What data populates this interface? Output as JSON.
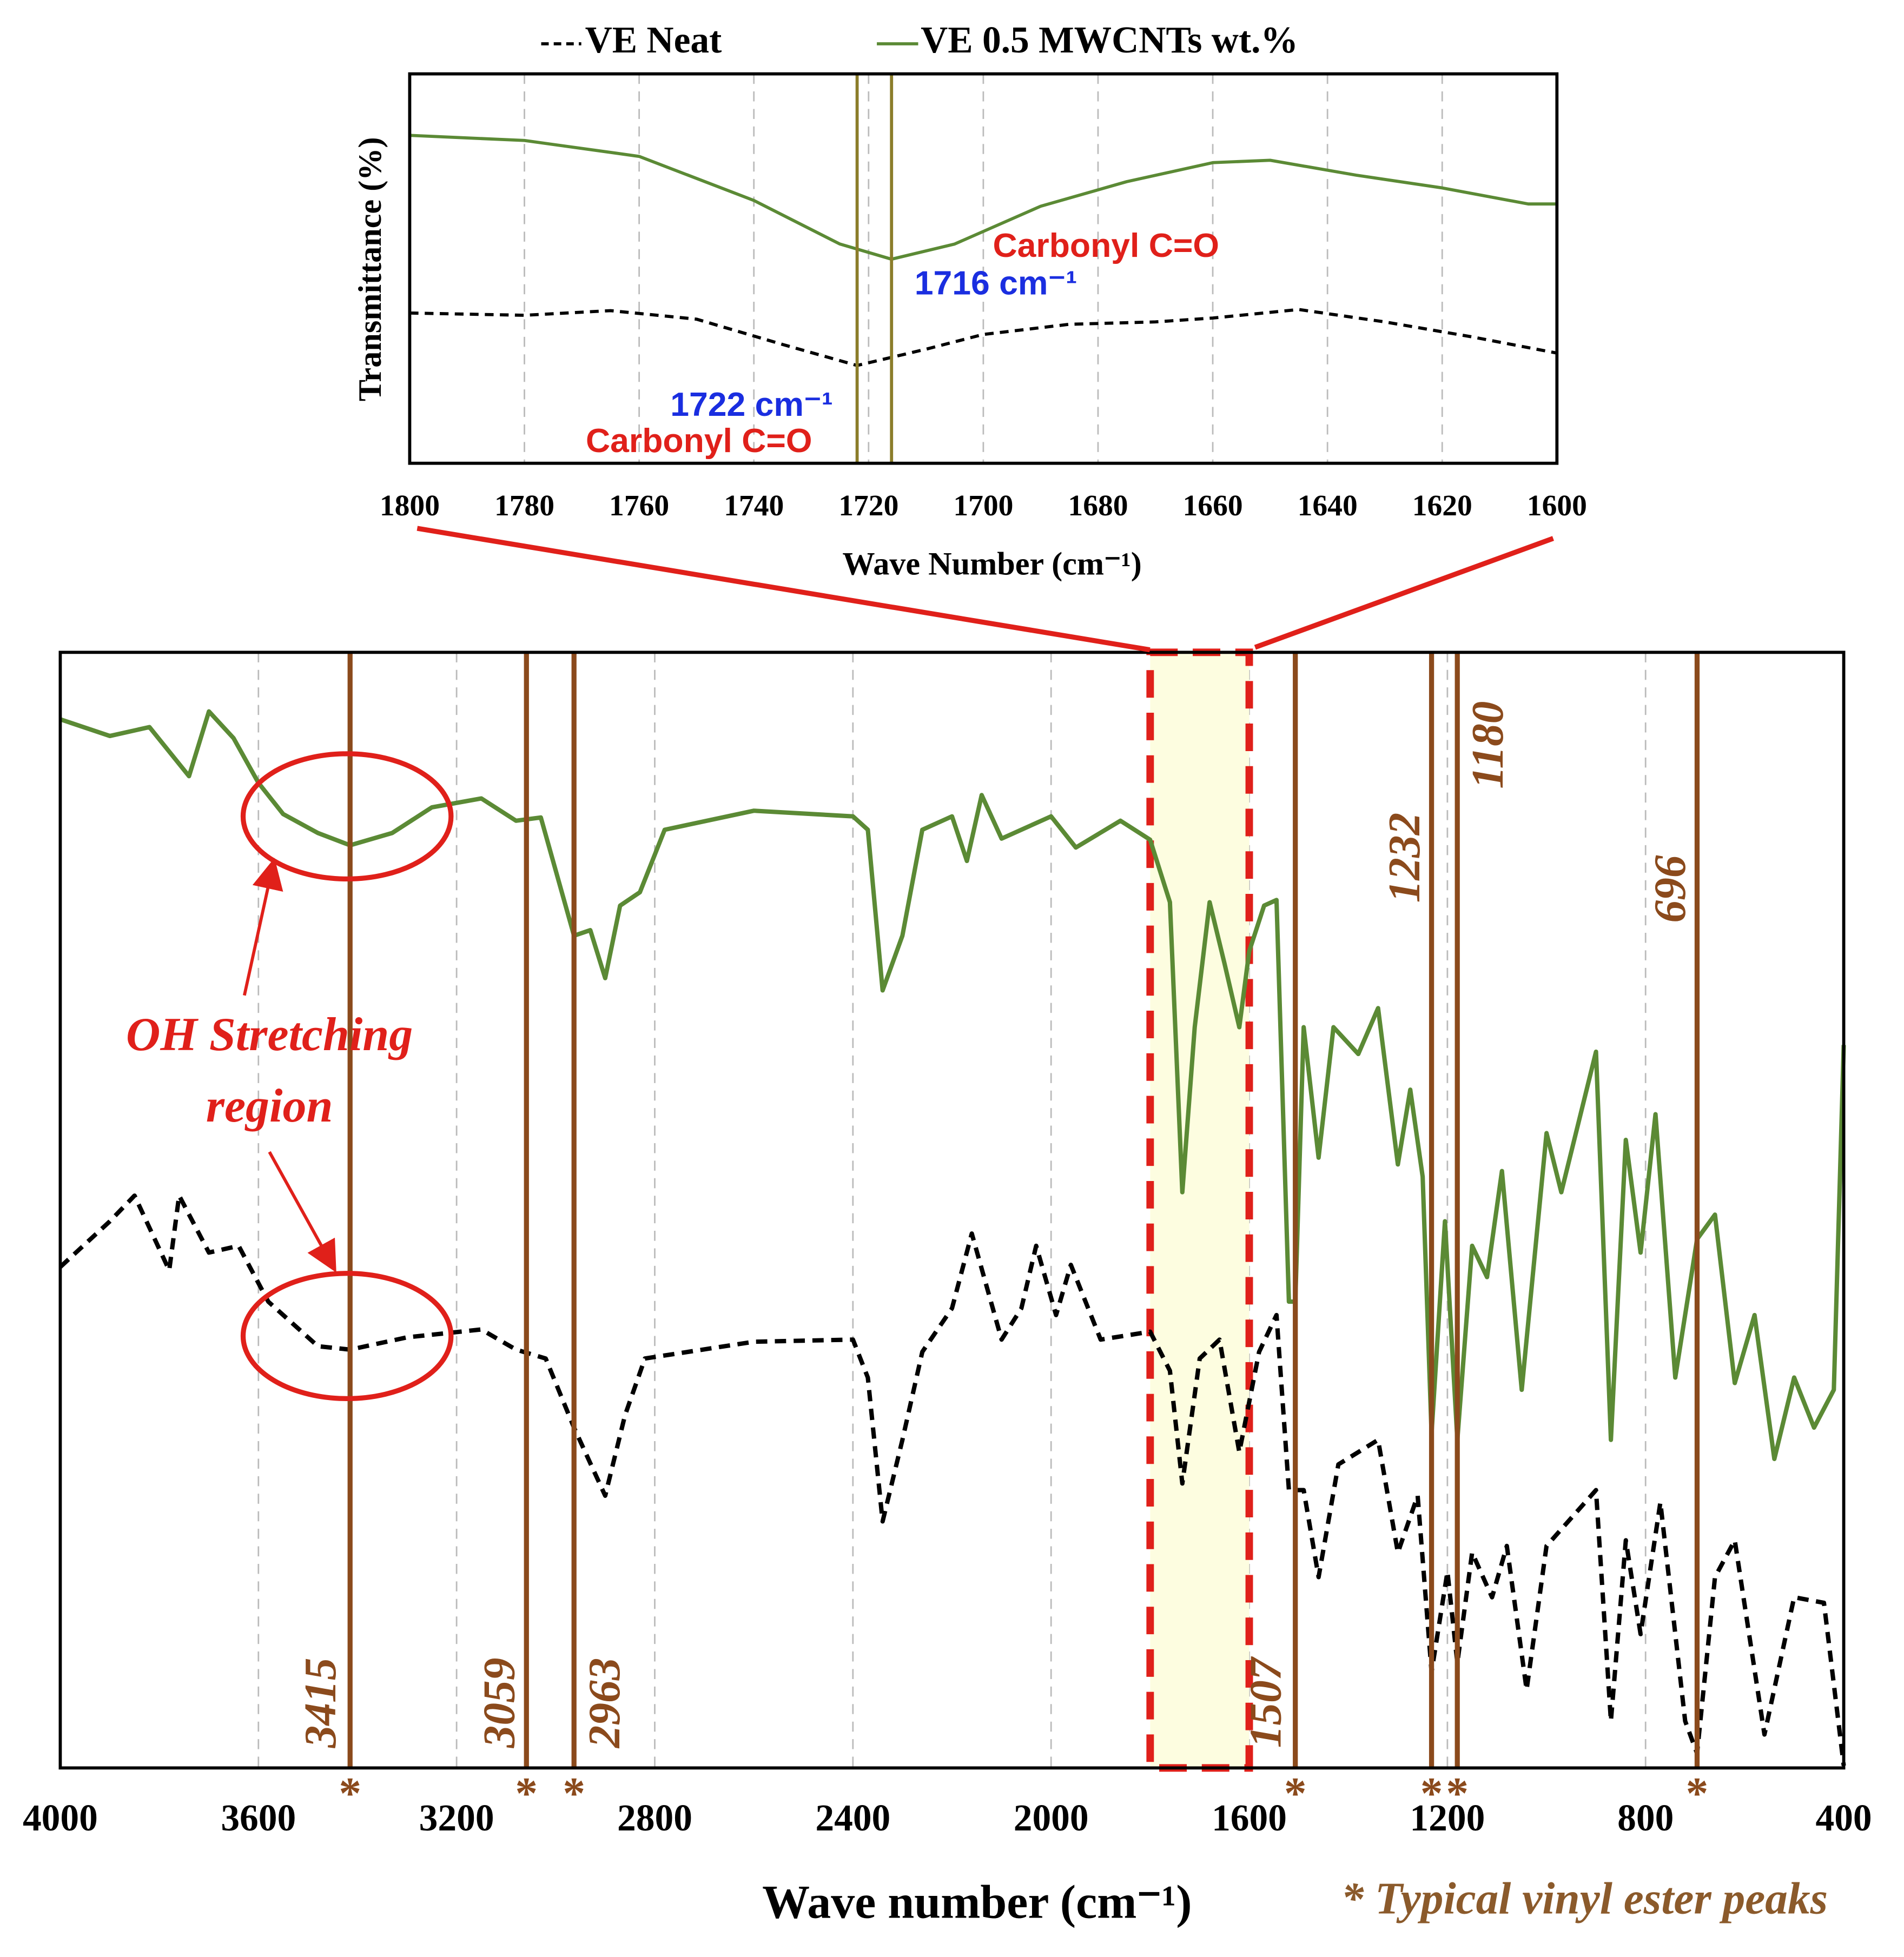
{
  "chart_data": [
    {
      "type": "line",
      "xlabel": "Wave Number (cm⁻¹)",
      "ylabel": "Transmittance (%)",
      "xlim": [
        1800,
        1600
      ],
      "ylim": [
        0,
        100
      ],
      "xticks": [
        1800,
        1780,
        1760,
        1740,
        1720,
        1700,
        1680,
        1660,
        1640,
        1620,
        1600
      ],
      "grid": true,
      "series": [
        {
          "name": "VE Neat",
          "color": "#000000",
          "dashed": true,
          "x": [
            1800,
            1780,
            1765,
            1750,
            1735,
            1722,
            1710,
            1700,
            1685,
            1670,
            1660,
            1645,
            1630,
            1615,
            1600
          ],
          "values": [
            38.6,
            38,
            39.2,
            37,
            30.5,
            25.1,
            29.3,
            33.1,
            35.7,
            36.3,
            37.3,
            39.5,
            36.3,
            32.5,
            28.3
          ]
        },
        {
          "name": "VE 0.5 MWCNTs wt.%",
          "color": "#5b8a35",
          "dashed": false,
          "x": [
            1800,
            1780,
            1760,
            1740,
            1725,
            1716,
            1705,
            1690,
            1675,
            1660,
            1650,
            1635,
            1620,
            1605,
            1600
          ],
          "values": [
            84.2,
            82.9,
            78.8,
            67.5,
            56.3,
            52.4,
            56.3,
            66,
            72.3,
            77.2,
            77.8,
            74,
            70.7,
            66.6,
            66.6
          ]
        }
      ],
      "markers": [
        1722,
        1716
      ],
      "marker_color": "#8b7d2a",
      "annotations": [
        {
          "text": "Carbonyl C=O",
          "color": "#e0201a"
        },
        {
          "text": "1716 cm⁻¹",
          "color": "#1a2ee0"
        },
        {
          "text": "1722 cm⁻¹",
          "color": "#1a2ee0"
        },
        {
          "text": "Carbonyl C=O",
          "color": "#e0201a"
        }
      ]
    },
    {
      "type": "line",
      "xlabel": "Wave number (cm⁻¹)",
      "xlim": [
        4000,
        400
      ],
      "ylim": [
        0,
        100
      ],
      "xticks": [
        4000,
        3600,
        3200,
        2800,
        2400,
        2000,
        1600,
        1200,
        800,
        400
      ],
      "grid": true,
      "highlight": [
        1800,
        1600
      ],
      "series": [
        {
          "color": "#5b8a35",
          "dashed": false,
          "x": [
            4000,
            3900,
            3820,
            3740,
            3700,
            3650,
            3600,
            3550,
            3480,
            3415,
            3330,
            3250,
            3150,
            3080,
            3030,
            2963,
            2930,
            2900,
            2870,
            2830,
            2780,
            2600,
            2400,
            2370,
            2340,
            2300,
            2260,
            2200,
            2170,
            2140,
            2100,
            2000,
            1950,
            1860,
            1800,
            1760,
            1735,
            1710,
            1680,
            1650,
            1620,
            1600,
            1570,
            1545,
            1520,
            1507,
            1490,
            1460,
            1430,
            1380,
            1340,
            1300,
            1275,
            1250,
            1232,
            1205,
            1180,
            1150,
            1120,
            1090,
            1050,
            1000,
            970,
            900,
            870,
            840,
            810,
            780,
            740,
            696,
            660,
            620,
            580,
            540,
            500,
            460,
            420,
            400
          ],
          "values": [
            94,
            92.5,
            93.3,
            88.9,
            94.7,
            92.3,
            88.3,
            85.5,
            83.8,
            82.7,
            83.8,
            86.1,
            86.9,
            84.9,
            85.2,
            74.6,
            75.1,
            70.8,
            77.3,
            78.5,
            84.1,
            85.8,
            85.3,
            84.1,
            69.7,
            74.6,
            84.1,
            85.3,
            81.3,
            87.2,
            83.3,
            85.3,
            82.5,
            84.9,
            83.2,
            77.6,
            51.6,
            66.4,
            77.6,
            72.1,
            66.4,
            73.2,
            77.3,
            77.8,
            41.8,
            41.8,
            66.4,
            54.7,
            66.4,
            64,
            68.1,
            54.1,
            60.8,
            53,
            30,
            49,
            29.4,
            46.8,
            44,
            53.5,
            33.9,
            56.9,
            51.6,
            64.2,
            29.4,
            56.3,
            46.2,
            58.6,
            35,
            47.4,
            49.6,
            34.5,
            40.6,
            27.7,
            35,
            30.5,
            33.9,
            64.8
          ]
        },
        {
          "color": "#000000",
          "dashed": true,
          "x": [
            4000,
            3900,
            3850,
            3780,
            3760,
            3700,
            3640,
            3580,
            3480,
            3415,
            3300,
            3150,
            3080,
            3020,
            2963,
            2900,
            2860,
            2820,
            2600,
            2400,
            2370,
            2340,
            2300,
            2260,
            2200,
            2160,
            2100,
            2060,
            2030,
            1990,
            1960,
            1900,
            1800,
            1760,
            1735,
            1700,
            1660,
            1620,
            1580,
            1545,
            1520,
            1490,
            1460,
            1420,
            1340,
            1300,
            1260,
            1232,
            1200,
            1180,
            1150,
            1110,
            1080,
            1040,
            1000,
            900,
            870,
            840,
            810,
            770,
            720,
            696,
            660,
            620,
            560,
            500,
            440,
            400
          ],
          "values": [
            44.9,
            49,
            51.3,
            44.6,
            51.3,
            46.2,
            46.8,
            41.8,
            37.8,
            37.5,
            38.6,
            39.3,
            37.5,
            36.7,
            30.5,
            24.4,
            31.6,
            36.7,
            38.2,
            38.4,
            35,
            22.1,
            29.4,
            37.3,
            41.2,
            47.9,
            38.4,
            41.2,
            46.8,
            40.6,
            45.1,
            38.4,
            39.1,
            35.6,
            25.5,
            36.7,
            38.4,
            28.3,
            37.3,
            40.6,
            24.9,
            24.9,
            17.1,
            27.2,
            29.4,
            19.3,
            24.4,
            8.6,
            17.6,
            9.4,
            19.3,
            15.3,
            19.9,
            7,
            19.9,
            24.9,
            4.2,
            20.4,
            12,
            23.8,
            4.2,
            1.3,
            17.1,
            20.4,
            3,
            15.3,
            14.8,
            0.2
          ]
        }
      ],
      "peaks": [
        3415,
        3059,
        2963,
        1507,
        1232,
        1180,
        696
      ],
      "peak_color": "#8b4a1c",
      "peak_marker": "*",
      "annotations": [
        {
          "text": "OH Stretching",
          "color": "#e0201a"
        },
        {
          "text": "region",
          "color": "#e0201a"
        }
      ],
      "footnote": "* Typical vinyl ester peaks"
    }
  ]
}
